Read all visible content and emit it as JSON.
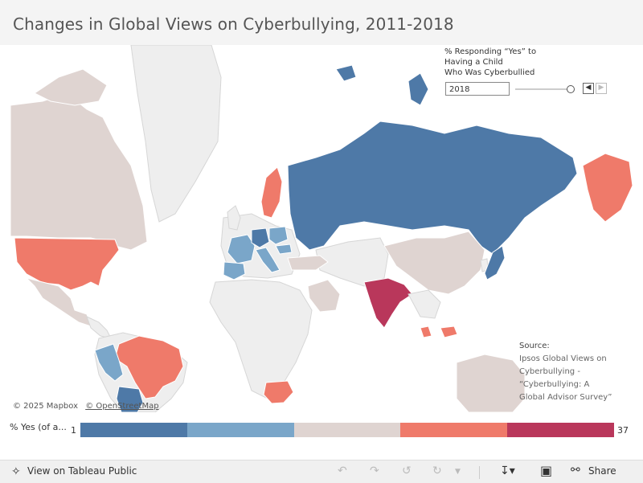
{
  "title": "Changes in Global Views on Cyberbullying, 2011-2018",
  "filter": {
    "title_lines": [
      "% Responding “Yes” to",
      "Having a Child",
      "Who Was Cyberbullied"
    ],
    "year": "2018",
    "prev_icon": "chevron-left-icon",
    "next_icon": "chevron-right-icon"
  },
  "source": {
    "heading": "Source:",
    "lines": [
      "Ipsos Global Views on",
      "Cyberbullying -",
      "“Cyberbullying: A",
      "Global Advisor Survey”"
    ]
  },
  "attribution": {
    "mapbox": "© 2025 Mapbox",
    "osm": "© OpenStreetMap"
  },
  "legend": {
    "label": "% Yes (of a...",
    "min": "1",
    "max": "37",
    "colors": [
      "#4e79a7",
      "#7aa6c9",
      "#dfd4d1",
      "#ef7a6a",
      "#b9375b"
    ]
  },
  "map_colors": {
    "ocean": "#ffffff",
    "land_no_data": "#eeeeee",
    "border": "#d6d6d6"
  },
  "toolbar": {
    "view_label": "View on Tableau Public",
    "share_label": "Share",
    "icons": [
      "tableau-icon",
      "undo-icon",
      "redo-icon",
      "revert-icon",
      "refresh-icon",
      "download-icon",
      "fullscreen-icon",
      "share-icon"
    ]
  }
}
